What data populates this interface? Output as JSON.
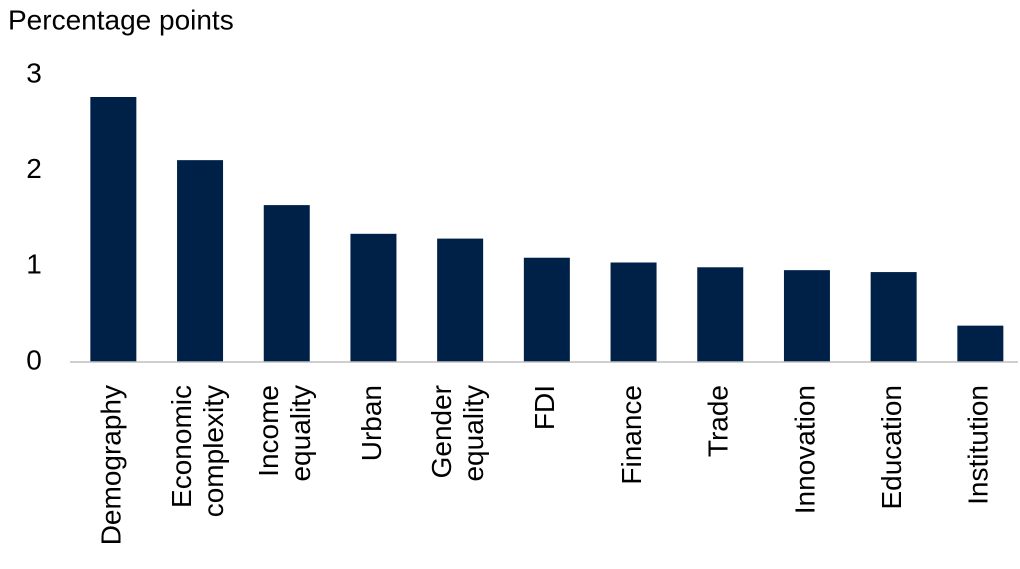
{
  "chart_data": {
    "type": "bar",
    "title": "Percentage points",
    "categories": [
      "Demography",
      "Economic complexity",
      "Income equality",
      "Urban",
      "Gender equality",
      "FDI",
      "Finance",
      "Trade",
      "Innovation",
      "Education",
      "Institution"
    ],
    "values": [
      2.77,
      2.11,
      1.64,
      1.34,
      1.29,
      1.09,
      1.04,
      0.99,
      0.96,
      0.94,
      0.38
    ],
    "color": "#002147",
    "ylim": [
      0,
      3
    ],
    "yticks": [
      0,
      1,
      2,
      3
    ],
    "grid": false
  }
}
